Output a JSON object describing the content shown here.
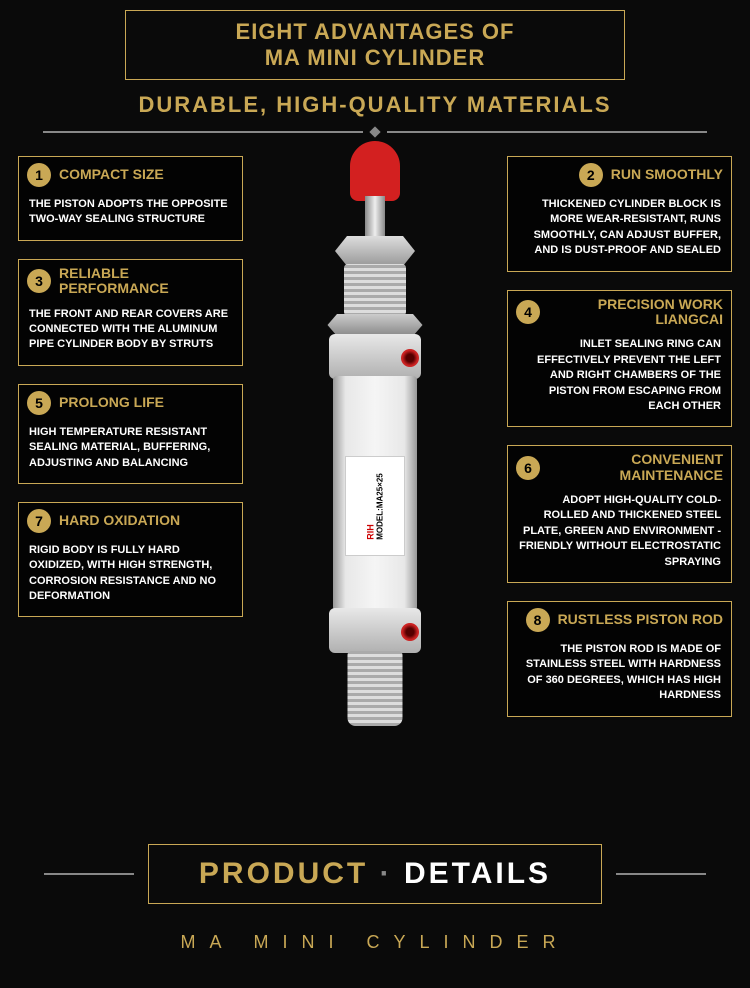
{
  "banner": {
    "line1": "EIGHT ADVANTAGES OF",
    "line2": "MA MINI CYLINDER"
  },
  "subtitle": "DURABLE, HIGH-QUALITY MATERIALS",
  "colors": {
    "gold": "#c9a855",
    "bg": "#0a0a0a",
    "red": "#d32020"
  },
  "product_label": {
    "brand": "RIH",
    "model": "MODEL:MA25×25"
  },
  "features_left": [
    {
      "num": "1",
      "title": "COMPACT SIZE",
      "desc": "THE PISTON ADOPTS THE OPPOSITE TWO-WAY SEALING STRUCTURE"
    },
    {
      "num": "3",
      "title": "RELIABLE PERFORMANCE",
      "desc": "THE FRONT AND REAR COVERS ARE CONNECTED WITH THE ALUMINUM PIPE CYLINDER BODY BY STRUTS"
    },
    {
      "num": "5",
      "title": "PROLONG LIFE",
      "desc": "HIGH TEMPERATURE RESISTANT SEALING MATERIAL, BUFFERING, ADJUSTING AND BALANCING"
    },
    {
      "num": "7",
      "title": "HARD OXIDATION",
      "desc": "RIGID BODY IS FULLY HARD OXIDIZED, WITH HIGH STRENGTH, CORROSION RESISTANCE AND NO DEFORMATION"
    }
  ],
  "features_right": [
    {
      "num": "2",
      "title": "RUN SMOOTHLY",
      "desc": "THICKENED CYLINDER BLOCK IS MORE WEAR-RESISTANT, RUNS SMOOTHLY, CAN ADJUST BUFFER, AND IS DUST-PROOF AND SEALED"
    },
    {
      "num": "4",
      "title": "PRECISION WORK LIANGCAI",
      "desc": "INLET SEALING RING CAN EFFECTIVELY PREVENT THE LEFT AND RIGHT CHAMBERS OF THE PISTON FROM ESCAPING FROM EACH OTHER"
    },
    {
      "num": "6",
      "title": "CONVENIENT MAINTENANCE",
      "desc": "ADOPT HIGH-QUALITY COLD-ROLLED AND THICKENED STEEL PLATE, GREEN AND ENVIRONMENT -FRIENDLY WITHOUT ELECTROSTATIC SPRAYING"
    },
    {
      "num": "8",
      "title": "RUSTLESS PISTON ROD",
      "desc": "THE PISTON ROD IS MADE OF STAINLESS STEEL WITH HARDNESS OF 360 DEGREES, WHICH HAS HIGH HARDNESS"
    }
  ],
  "bottom": {
    "p1": "PRODUCT",
    "dot": "·",
    "p2": "DETAILS",
    "sub": "MA MINI CYLINDER"
  }
}
